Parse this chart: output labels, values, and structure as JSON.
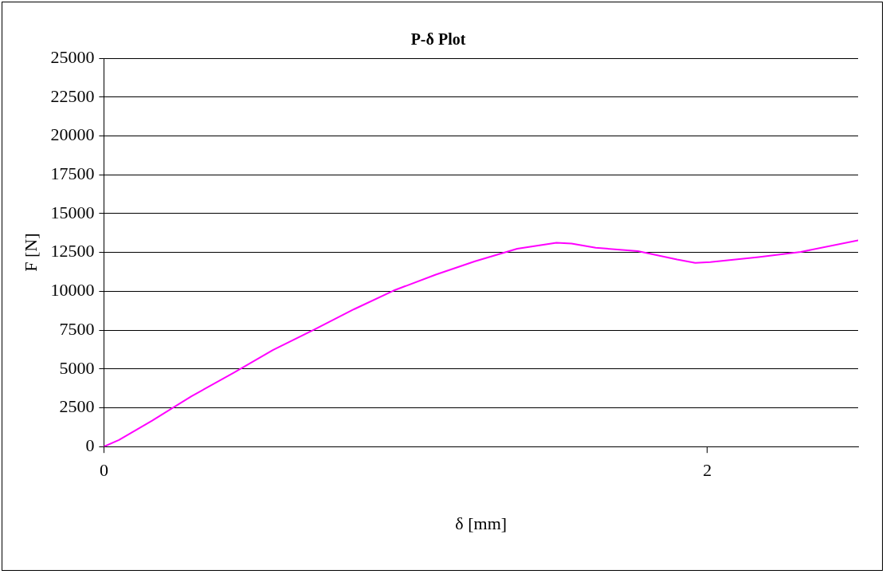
{
  "chart_data": {
    "type": "line",
    "title": "P-δ Plot",
    "xlabel": "δ [mm]",
    "ylabel": "F [N]",
    "xlim": [
      0,
      2.5
    ],
    "xticks": [
      0,
      2
    ],
    "ylim": [
      0,
      25000
    ],
    "yticks": [
      0,
      2500,
      5000,
      7500,
      10000,
      12500,
      15000,
      17500,
      20000,
      22500,
      25000
    ],
    "grid": "y",
    "legend": false,
    "marker": "none",
    "line_style": "solid",
    "series": [
      {
        "color": "#ff00ff",
        "x": [
          0,
          0.05,
          0.16,
          0.29,
          0.43,
          0.56,
          0.7,
          0.83,
          0.96,
          1.1,
          1.23,
          1.37,
          1.5,
          1.55,
          1.63,
          1.77,
          1.9,
          1.96,
          2.01,
          2.17,
          2.31,
          2.5
        ],
        "values": [
          0,
          430,
          1670,
          3240,
          4750,
          6210,
          7560,
          8850,
          10040,
          11070,
          11930,
          12740,
          13120,
          13070,
          12800,
          12580,
          12040,
          11830,
          11880,
          12200,
          12530,
          13280
        ]
      }
    ]
  }
}
